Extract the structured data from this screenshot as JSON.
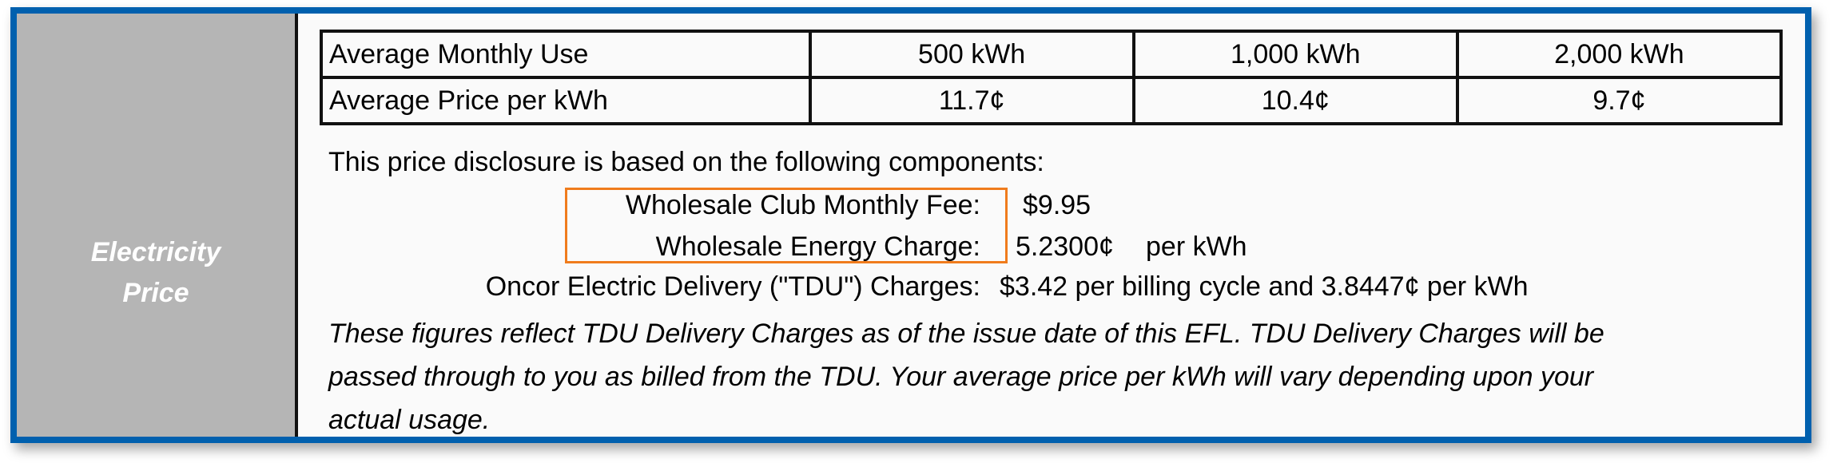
{
  "section_label": [
    "Electricity",
    "Price"
  ],
  "price_table": {
    "rows": [
      {
        "label": "Average Monthly Use",
        "values": [
          "500 kWh",
          "1,000 kWh",
          "2,000 kWh"
        ]
      },
      {
        "label": "Average Price per kWh",
        "values": [
          "11.7¢",
          "10.4¢",
          "9.7¢"
        ]
      }
    ]
  },
  "components": {
    "intro": "This price disclosure is based on the following components:",
    "items": [
      {
        "label": "Wholesale Club Monthly Fee:",
        "value": "$9.95",
        "unit": ""
      },
      {
        "label": "Wholesale Energy Charge:",
        "value": "5.2300¢",
        "unit": "per kWh"
      },
      {
        "label": "Oncor Electric Delivery (\"TDU\") Charges:",
        "value": "$3.42 per billing cycle and 3.8447¢ per kWh",
        "unit": ""
      }
    ],
    "highlight_color": "#f07c1d"
  },
  "disclaimer": [
    "These figures reflect TDU Delivery Charges as of the issue date of this EFL. TDU Delivery Charges will be",
    "passed through to you as billed from the TDU. Your average price per kWh will vary depending upon your",
    "actual usage."
  ],
  "colors": {
    "border": "#0060ae",
    "label_panel": "#b5b5b5"
  }
}
